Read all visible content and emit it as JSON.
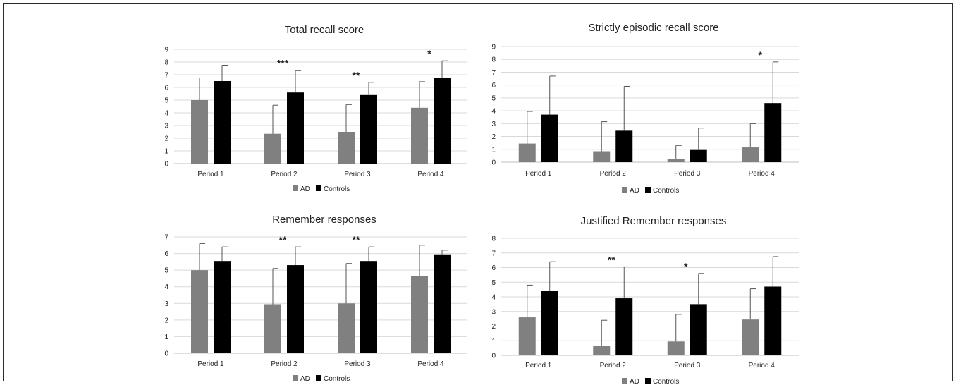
{
  "colors": {
    "ad": "#808080",
    "controls": "#000000",
    "grid": "#d9d9d9",
    "axis": "#bfbfbf",
    "errorbar": "#555555"
  },
  "chart_data": [
    {
      "type": "bar",
      "title": "Total recall score",
      "categories": [
        "Period 1",
        "Period 2",
        "Period 3",
        "Period 4"
      ],
      "ylim": [
        0,
        9
      ],
      "yticks": [
        0,
        1,
        2,
        3,
        4,
        5,
        6,
        7,
        8,
        9
      ],
      "grid": true,
      "legend": "bottom",
      "series": [
        {
          "name": "AD",
          "values": [
            5.0,
            2.35,
            2.5,
            4.4
          ],
          "error": [
            1.75,
            2.25,
            2.15,
            2.05
          ]
        },
        {
          "name": "Controls",
          "values": [
            6.5,
            5.6,
            5.4,
            6.75
          ],
          "error": [
            1.25,
            1.75,
            1.0,
            1.35
          ]
        }
      ],
      "annotations": [
        "",
        "***",
        "**",
        "*"
      ]
    },
    {
      "type": "bar",
      "title": "Strictly episodic recall score",
      "categories": [
        "Period 1",
        "Period 2",
        "Period 3",
        "Period 4"
      ],
      "ylim": [
        0,
        9
      ],
      "yticks": [
        0,
        1,
        2,
        3,
        4,
        5,
        6,
        7,
        8,
        9
      ],
      "grid": true,
      "legend": "bottom",
      "series": [
        {
          "name": "AD",
          "values": [
            1.45,
            0.85,
            0.25,
            1.15
          ],
          "error": [
            2.5,
            2.3,
            1.05,
            1.85
          ]
        },
        {
          "name": "Controls",
          "values": [
            3.7,
            2.45,
            0.95,
            4.6
          ],
          "error": [
            3.0,
            3.45,
            1.7,
            3.2
          ]
        }
      ],
      "annotations": [
        "",
        "",
        "",
        "*"
      ]
    },
    {
      "type": "bar",
      "title": "Remember responses",
      "categories": [
        "Period 1",
        "Period 2",
        "Period 3",
        "Period 4"
      ],
      "ylim": [
        0,
        7
      ],
      "yticks": [
        0,
        1,
        2,
        3,
        4,
        5,
        6,
        7
      ],
      "grid": true,
      "legend": "bottom",
      "series": [
        {
          "name": "AD",
          "values": [
            5.0,
            2.95,
            3.0,
            4.65
          ],
          "error": [
            1.6,
            2.15,
            2.4,
            1.85
          ]
        },
        {
          "name": "Controls",
          "values": [
            5.55,
            5.3,
            5.55,
            5.95
          ],
          "error": [
            0.85,
            1.1,
            0.85,
            0.25
          ]
        }
      ],
      "annotations": [
        "",
        "**",
        "**",
        ""
      ]
    },
    {
      "type": "bar",
      "title": "Justified Remember responses",
      "categories": [
        "Period 1",
        "Period 2",
        "Period 3",
        "Period 4"
      ],
      "ylim": [
        0,
        8
      ],
      "yticks": [
        0,
        1,
        2,
        3,
        4,
        5,
        6,
        7,
        8
      ],
      "grid": true,
      "legend": "bottom",
      "series": [
        {
          "name": "AD",
          "values": [
            2.6,
            0.65,
            0.95,
            2.45
          ],
          "error": [
            2.2,
            1.75,
            1.85,
            2.1
          ]
        },
        {
          "name": "Controls",
          "values": [
            4.4,
            3.9,
            3.5,
            4.7
          ],
          "error": [
            2.0,
            2.15,
            2.1,
            2.05
          ]
        }
      ],
      "annotations": [
        "",
        "**",
        "*",
        ""
      ]
    }
  ]
}
